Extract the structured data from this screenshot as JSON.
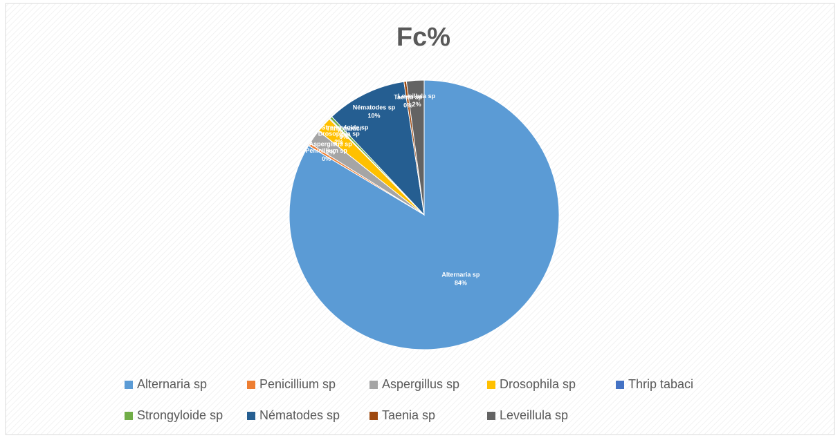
{
  "chart_data": {
    "type": "pie",
    "title": "Fc%",
    "categories": [
      "Alternaria sp",
      "Penicillium sp",
      "Aspergillus sp",
      "Drosophila sp",
      "Thrip tabaci",
      "Strongyloide sp",
      "Nématodes sp",
      "Taenia sp",
      "Leveillula sp"
    ],
    "values": [
      83.6,
      0.3,
      1.8,
      1.9,
      0.1,
      0.3,
      9.6,
      0.3,
      2.1
    ],
    "value_labels": [
      "84%",
      "0%",
      "2%",
      "2%",
      "0%",
      "0%",
      "10%",
      "0%",
      "2%"
    ],
    "colors": [
      "#5b9bd5",
      "#ed7d31",
      "#a5a5a5",
      "#ffc000",
      "#4472c4",
      "#70ad47",
      "#255e91",
      "#9e480e",
      "#636363"
    ]
  }
}
